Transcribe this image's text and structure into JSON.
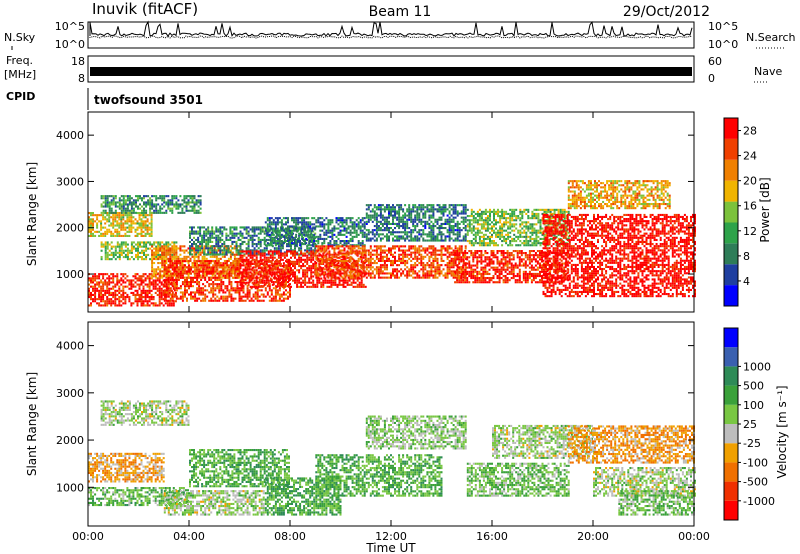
{
  "header": {
    "station": "Inuvik (fitACF)",
    "beam": "Beam 11",
    "date": "29/Oct/2012"
  },
  "aux": {
    "nsky_label": "N.Sky",
    "nsearch_label": "N.Search",
    "noise_ticks": [
      "10^5",
      "10^0"
    ],
    "freq_label": "Freq.",
    "freq_unit": "[MHz]",
    "freq_ticks": [
      "18",
      "8"
    ],
    "nave_ticks": [
      "60",
      "0"
    ],
    "nave_label": "Nave",
    "cpid_label": "CPID",
    "cpid_value": "twofsound 3501"
  },
  "colors": {
    "power": [
      "#0000ff",
      "#1f3fa0",
      "#2e7d58",
      "#2ea34a",
      "#7cc23c",
      "#f0b400",
      "#f08000",
      "#f04000",
      "#ff0000"
    ],
    "velocity": [
      "#ff0000",
      "#f03000",
      "#f07000",
      "#f0a000",
      "#bdbdbd",
      "#79c743",
      "#3aa13a",
      "#2e8b57",
      "#3a60b0",
      "#0000ff"
    ]
  },
  "chart_data": [
    {
      "type": "heatmap",
      "title": "Power",
      "ylabel": "Slant Range [km]",
      "xlabel": "",
      "ylim": [
        180,
        4500
      ],
      "xlim": [
        "00:00",
        "24:00"
      ],
      "yticks": [
        "1000",
        "2000",
        "3000",
        "4000"
      ],
      "xticks": [
        "00:00",
        "04:00",
        "08:00",
        "12:00",
        "16:00",
        "20:00",
        "00:00"
      ],
      "colorbar": {
        "label": "Power [dB]",
        "ticks": [
          "28",
          "24",
          "20",
          "16",
          "12",
          "8",
          "4"
        ],
        "range": [
          0,
          30
        ]
      },
      "bands": [
        {
          "t": [
            0,
            3.5
          ],
          "r": [
            300,
            1000
          ],
          "value": 27
        },
        {
          "t": [
            0,
            2.5
          ],
          "r": [
            1800,
            2300
          ],
          "value": 18
        },
        {
          "t": [
            0.5,
            3.5
          ],
          "r": [
            1300,
            1700
          ],
          "value": 15
        },
        {
          "t": [
            0.5,
            4.5
          ],
          "r": [
            2300,
            2700
          ],
          "value": 10
        },
        {
          "t": [
            2.5,
            6
          ],
          "r": [
            900,
            1600
          ],
          "value": 22
        },
        {
          "t": [
            3,
            8
          ],
          "r": [
            400,
            1300
          ],
          "value": 26
        },
        {
          "t": [
            4,
            9
          ],
          "r": [
            1400,
            2000
          ],
          "value": 9
        },
        {
          "t": [
            6,
            11
          ],
          "r": [
            700,
            1500
          ],
          "value": 28
        },
        {
          "t": [
            7,
            11
          ],
          "r": [
            1600,
            2200
          ],
          "value": 8
        },
        {
          "t": [
            9,
            15
          ],
          "r": [
            900,
            1600
          ],
          "value": 25
        },
        {
          "t": [
            11,
            15
          ],
          "r": [
            1700,
            2500
          ],
          "value": 8
        },
        {
          "t": [
            14.5,
            19
          ],
          "r": [
            800,
            1500
          ],
          "value": 27
        },
        {
          "t": [
            15,
            19
          ],
          "r": [
            1600,
            2400
          ],
          "value": 14
        },
        {
          "t": [
            18,
            24
          ],
          "r": [
            500,
            2300
          ],
          "value": 29
        },
        {
          "t": [
            19,
            23
          ],
          "r": [
            2400,
            3000
          ],
          "value": 20
        }
      ]
    },
    {
      "type": "heatmap",
      "title": "Velocity",
      "ylabel": "Slant Range [km]",
      "xlabel": "Time UT",
      "ylim": [
        180,
        4500
      ],
      "xlim": [
        "00:00",
        "24:00"
      ],
      "yticks": [
        "1000",
        "2000",
        "3000",
        "4000"
      ],
      "xticks": [
        "00:00",
        "04:00",
        "08:00",
        "12:00",
        "16:00",
        "20:00",
        "00:00"
      ],
      "colorbar": {
        "label": "Velocity [m s⁻¹]",
        "ticks": [
          "1000",
          "500",
          "100",
          "25",
          "-25",
          "-100",
          "-500",
          "-1000"
        ],
        "range": [
          -1000,
          1000
        ]
      },
      "bands": [
        {
          "t": [
            0,
            3
          ],
          "r": [
            1100,
            1700
          ],
          "value": -300
        },
        {
          "t": [
            0,
            4
          ],
          "r": [
            600,
            1000
          ],
          "value": 200
        },
        {
          "t": [
            0.5,
            4
          ],
          "r": [
            2300,
            2800
          ],
          "value": 0
        },
        {
          "t": [
            3,
            7
          ],
          "r": [
            400,
            900
          ],
          "value": 0
        },
        {
          "t": [
            4,
            8
          ],
          "r": [
            1000,
            1800
          ],
          "value": 250
        },
        {
          "t": [
            7,
            10
          ],
          "r": [
            400,
            1200
          ],
          "value": 300
        },
        {
          "t": [
            9,
            14
          ],
          "r": [
            800,
            1700
          ],
          "value": 250
        },
        {
          "t": [
            11,
            15
          ],
          "r": [
            1800,
            2500
          ],
          "value": 60
        },
        {
          "t": [
            15,
            19
          ],
          "r": [
            800,
            1500
          ],
          "value": 150
        },
        {
          "t": [
            16,
            20
          ],
          "r": [
            1600,
            2300
          ],
          "value": 0
        },
        {
          "t": [
            19,
            24
          ],
          "r": [
            1500,
            2300
          ],
          "value": -350
        },
        {
          "t": [
            20,
            24
          ],
          "r": [
            800,
            1400
          ],
          "value": 0
        },
        {
          "t": [
            21,
            24
          ],
          "r": [
            400,
            900
          ],
          "value": 150
        }
      ]
    }
  ]
}
